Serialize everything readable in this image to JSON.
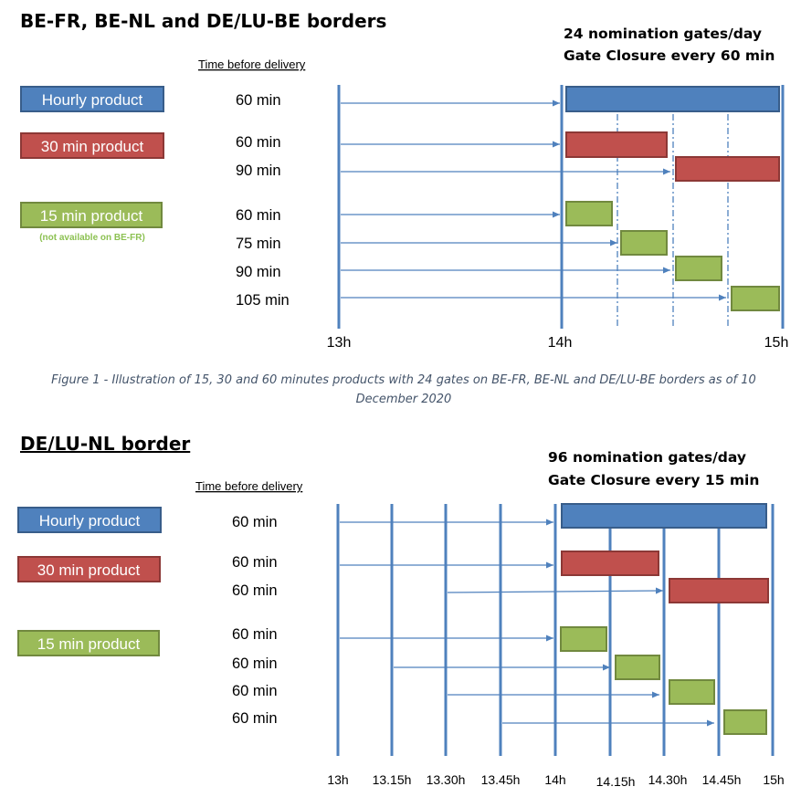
{
  "section1": {
    "title": "BE-FR, BE-NL and DE/LU-BE borders",
    "gates_line1": "24 nomination gates/day",
    "gates_line2": "Gate Closure every 60 min",
    "time_before_delivery": "Time before delivery",
    "products": {
      "hourly": "Hourly product",
      "min30": "30 min product",
      "min15": "15 min product",
      "min15_note": "(not available on BE-FR)"
    },
    "lead_times": [
      "60 min",
      "60 min",
      "90 min",
      "60 min",
      "75 min",
      "90 min",
      "105 min"
    ],
    "ticks": [
      "13h",
      "14h",
      "15h"
    ],
    "caption_line1": "Figure 1 - Illustration of 15, 30 and 60 minutes products with 24 gates on BE-FR, BE-NL and DE/LU-BE borders as of 10",
    "caption_line2": "December 2020"
  },
  "section2": {
    "title": "DE/LU-NL border",
    "gates_line1": "96 nomination gates/day",
    "gates_line2": "Gate Closure every 15 min",
    "time_before_delivery": "Time before delivery",
    "products": {
      "hourly": "Hourly product",
      "min30": "30 min product",
      "min15": "15 min product"
    },
    "lead_times": [
      "60 min",
      "60 min",
      "60 min",
      "60 min",
      "60 min",
      "60 min",
      "60 min"
    ],
    "ticks": [
      "13h",
      "13.15h",
      "13.30h",
      "13.45h",
      "14h",
      "14.15h",
      "14.30h",
      "14.45h",
      "15h"
    ]
  },
  "colors": {
    "blue": "#4f81bd",
    "blue_border": "#385d8a",
    "red": "#c0504d",
    "red_border": "#8c3836",
    "green": "#9bbb59",
    "green_border": "#71893f",
    "axis": "#4f81bd",
    "note": "#8cc152",
    "caption": "#44546a"
  }
}
